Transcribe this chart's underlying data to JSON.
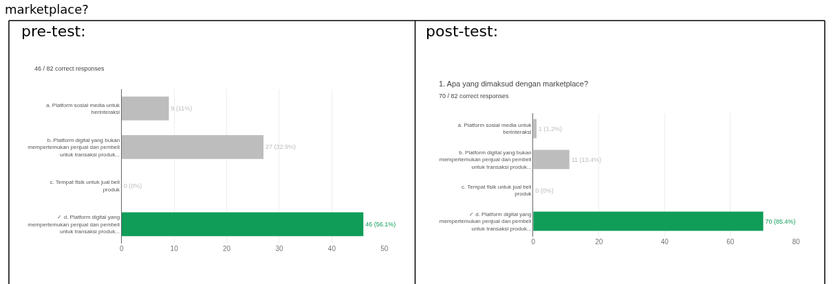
{
  "chart_data": [
    {
      "type": "bar",
      "orientation": "horizontal",
      "title": "pre-test:",
      "subtitle": "46 / 82 correct responses",
      "annotations": [
        "marketplace?"
      ],
      "categories": [
        "a. Platform sosial media untuk berinteraksi",
        "b. Platform digital yang bukan mempertemukan penjual dan pembeli untuk transaksi produk...",
        "c. Tempat fisik untuk jual beli produk",
        "✓ d. Platform digital yang mempertemukan penjual dan pembeli untuk transaksi produk..."
      ],
      "values": [
        9,
        27,
        0,
        46
      ],
      "colors": [
        "#bdbdbd",
        "#bdbdbd",
        "#bdbdbd",
        "#0f9d58"
      ],
      "value_labels": [
        "9 (11%)",
        "27 (32.9%)",
        "0 (0%)",
        "46 (56.1%)"
      ],
      "xlim": [
        0,
        50
      ],
      "xticks": [
        0,
        10,
        20,
        30,
        40,
        50
      ],
      "grid": "x"
    },
    {
      "type": "bar",
      "orientation": "horizontal",
      "title": "post-test:",
      "subtitle": "1. Apa yang dimaksud dengan marketplace?",
      "annotations": [
        "70 / 82 correct responses"
      ],
      "categories": [
        "a. Platform sosial media untuk berinteraksi",
        "b. Platform digital yang bukan mempertemukan penjual dan pembeli untuk transaksi produk...",
        "c. Tempat fisik untuk jual beli produk",
        "✓ d. Platform digital yang mempertemukan penjual dan pembeli untuk transaksi produk..."
      ],
      "values": [
        1,
        11,
        0,
        70
      ],
      "colors": [
        "#bdbdbd",
        "#bdbdbd",
        "#bdbdbd",
        "#0f9d58"
      ],
      "value_labels": [
        "1 (1.2%)",
        "11 (13.4%)",
        "0 (0%)",
        "70 (85.4%)"
      ],
      "xlim": [
        0,
        80
      ],
      "xticks": [
        0,
        20,
        40,
        60,
        80
      ],
      "grid": "x"
    }
  ]
}
